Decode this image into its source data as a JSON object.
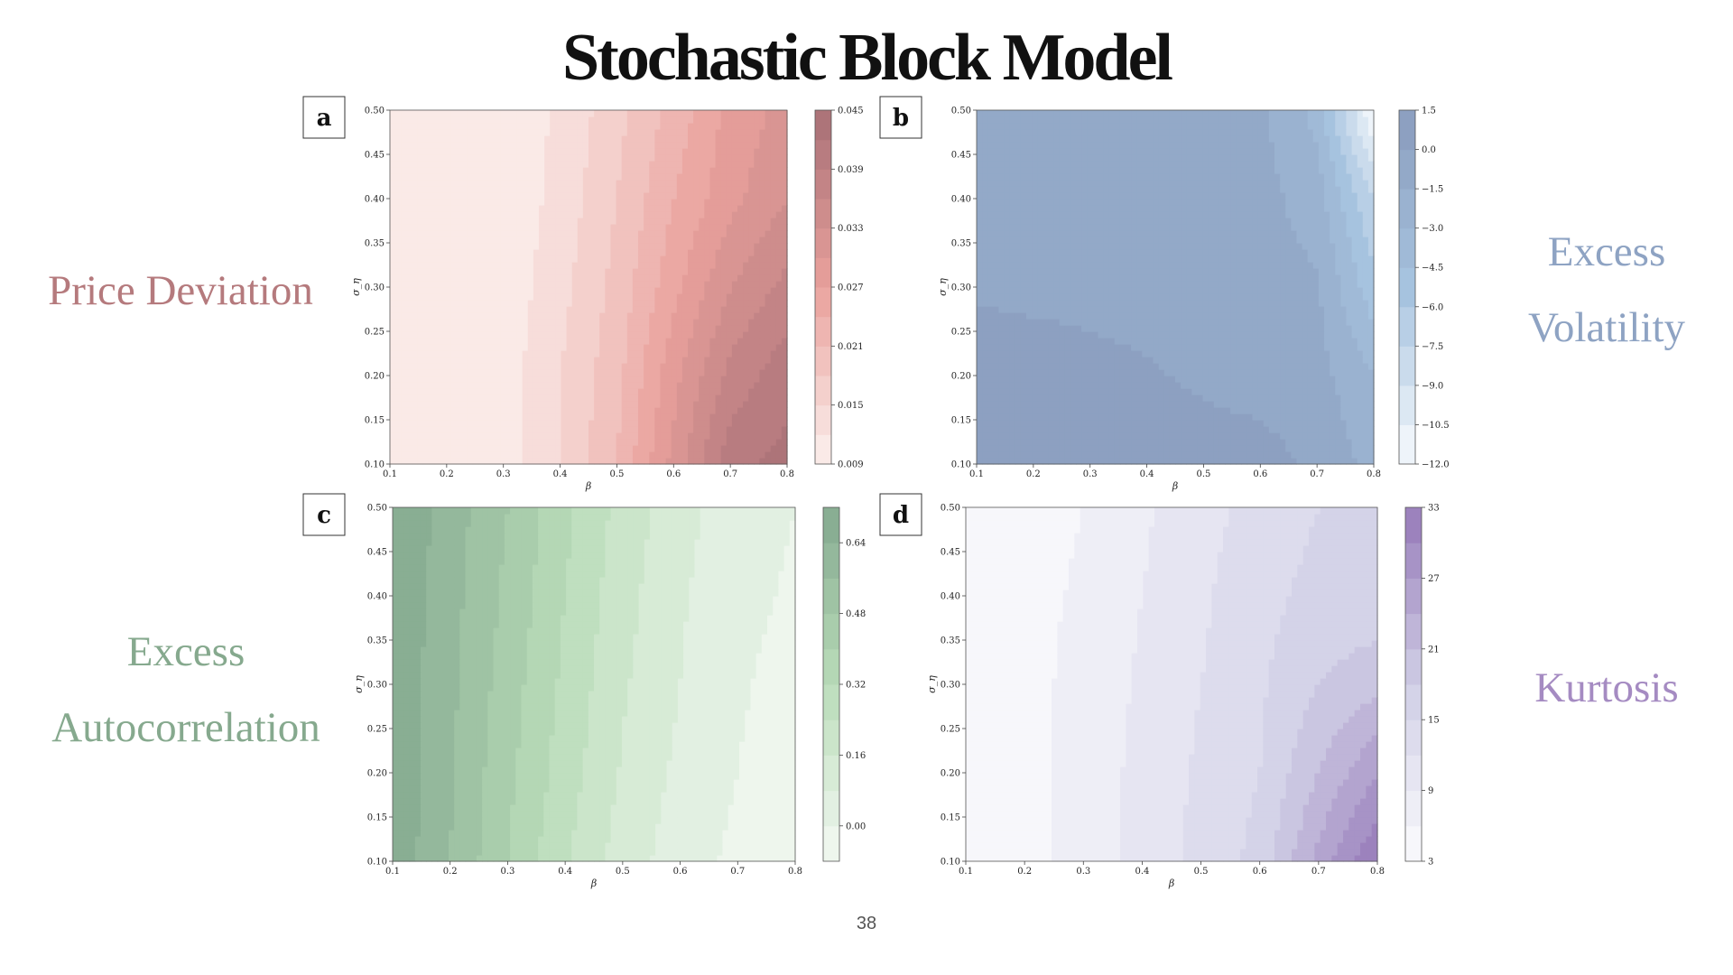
{
  "slide": {
    "title": "Stochastic Block Model",
    "page_number": "38"
  },
  "side_labels": [
    {
      "lines": [
        "Price Deviation"
      ],
      "color": "#b57a7d"
    },
    {
      "lines": [
        "Excess",
        "Volatility"
      ],
      "color": "#8ea3c3"
    },
    {
      "lines": [
        "Excess",
        "Autocorrelation"
      ],
      "color": "#86a98e"
    },
    {
      "lines": [
        "Kurtosis"
      ],
      "color": "#a58bc2"
    }
  ],
  "chart_data": [
    {
      "type": "heatmap",
      "panel": "a",
      "metric": "Price Deviation",
      "xlabel": "β",
      "ylabel": "σ_η",
      "xlim": [
        0.1,
        0.8
      ],
      "ylim": [
        0.1,
        0.5
      ],
      "x_ticks": [
        "0.1",
        "0.2",
        "0.3",
        "0.4",
        "0.5",
        "0.6",
        "0.7",
        "0.8"
      ],
      "y_ticks": [
        "0.10",
        "0.15",
        "0.20",
        "0.25",
        "0.30",
        "0.35",
        "0.40",
        "0.45",
        "0.50"
      ],
      "colorbar": {
        "min": 0.009,
        "max": 0.045,
        "levels": 12,
        "ticks": [
          "0.009",
          "0.015",
          "0.021",
          "0.027",
          "0.033",
          "0.039",
          "0.045"
        ],
        "low_color": "#fbf1ee",
        "mid_color": "#e9a19c",
        "high_color": "#a87076"
      },
      "grid": {
        "x": [
          0.1,
          0.2,
          0.3,
          0.4,
          0.5,
          0.6,
          0.7,
          0.8
        ],
        "y": [
          0.1,
          0.2,
          0.3,
          0.4,
          0.5
        ],
        "values": [
          [
            0.009,
            0.0095,
            0.0105,
            0.015,
            0.021,
            0.031,
            0.041,
            0.043
          ],
          [
            0.009,
            0.0095,
            0.0105,
            0.015,
            0.02,
            0.029,
            0.037,
            0.041
          ],
          [
            0.009,
            0.0093,
            0.01,
            0.014,
            0.019,
            0.026,
            0.033,
            0.037
          ],
          [
            0.009,
            0.0093,
            0.0098,
            0.013,
            0.018,
            0.024,
            0.029,
            0.033
          ],
          [
            0.009,
            0.0093,
            0.0098,
            0.0125,
            0.017,
            0.022,
            0.028,
            0.031
          ]
        ]
      }
    },
    {
      "type": "heatmap",
      "panel": "b",
      "metric": "Excess Volatility",
      "xlabel": "β",
      "ylabel": "σ_η",
      "xlim": [
        0.1,
        0.8
      ],
      "ylim": [
        0.1,
        0.5
      ],
      "x_ticks": [
        "0.1",
        "0.2",
        "0.3",
        "0.4",
        "0.5",
        "0.6",
        "0.7",
        "0.8"
      ],
      "y_ticks": [
        "0.10",
        "0.15",
        "0.20",
        "0.25",
        "0.30",
        "0.35",
        "0.40",
        "0.45",
        "0.50"
      ],
      "colorbar": {
        "min": -12.0,
        "max": 1.5,
        "levels": 9,
        "ticks": [
          "1.5",
          "0.0",
          "−1.5",
          "−3.0",
          "−4.5",
          "−6.0",
          "−7.5",
          "−9.0",
          "−10.5",
          "−12.0"
        ],
        "low_color": "#f7fafd",
        "mid_color": "#a6c3df",
        "high_color": "#8a9cbd"
      },
      "grid": {
        "x": [
          0.1,
          0.2,
          0.3,
          0.4,
          0.5,
          0.6,
          0.7,
          0.8
        ],
        "y": [
          0.1,
          0.2,
          0.3,
          0.4,
          0.5
        ],
        "values": [
          [
            1.3,
            1.2,
            1.0,
            0.9,
            0.8,
            0.6,
            -0.3,
            -2.0
          ],
          [
            1.2,
            1.0,
            0.6,
            0.2,
            -0.3,
            -0.6,
            -0.9,
            -3.0
          ],
          [
            -0.3,
            -0.5,
            -0.6,
            -0.7,
            -0.8,
            -0.9,
            -1.3,
            -5.5
          ],
          [
            -0.6,
            -0.7,
            -0.8,
            -0.8,
            -0.9,
            -1.0,
            -2.2,
            -7.5
          ],
          [
            -0.8,
            -0.8,
            -0.9,
            -0.9,
            -1.0,
            -1.2,
            -3.5,
            -12.0
          ]
        ]
      }
    },
    {
      "type": "heatmap",
      "panel": "c",
      "metric": "Excess Autocorrelation",
      "xlabel": "β",
      "ylabel": "σ_η",
      "xlim": [
        0.1,
        0.8
      ],
      "ylim": [
        0.1,
        0.5
      ],
      "x_ticks": [
        "0.1",
        "0.2",
        "0.3",
        "0.4",
        "0.5",
        "0.6",
        "0.7",
        "0.8"
      ],
      "y_ticks": [
        "0.10",
        "0.15",
        "0.20",
        "0.25",
        "0.30",
        "0.35",
        "0.40",
        "0.45",
        "0.50"
      ],
      "colorbar": {
        "min": -0.08,
        "max": 0.72,
        "levels": 10,
        "ticks": [
          "0.00",
          "0.16",
          "0.32",
          "0.48",
          "0.64"
        ],
        "low_color": "#f4f9f3",
        "mid_color": "#b9dcb9",
        "high_color": "#84a98f"
      },
      "grid": {
        "x": [
          0.1,
          0.2,
          0.3,
          0.4,
          0.5,
          0.6,
          0.7,
          0.8
        ],
        "y": [
          0.1,
          0.2,
          0.3,
          0.4,
          0.5
        ],
        "values": [
          [
            0.7,
            0.56,
            0.4,
            0.25,
            0.12,
            0.04,
            -0.02,
            -0.07
          ],
          [
            0.7,
            0.57,
            0.42,
            0.28,
            0.15,
            0.06,
            0.0,
            -0.05
          ],
          [
            0.7,
            0.58,
            0.44,
            0.3,
            0.17,
            0.08,
            0.01,
            -0.03
          ],
          [
            0.71,
            0.59,
            0.46,
            0.32,
            0.19,
            0.09,
            0.02,
            -0.01
          ],
          [
            0.72,
            0.6,
            0.48,
            0.34,
            0.21,
            0.11,
            0.03,
            0.0
          ]
        ]
      }
    },
    {
      "type": "heatmap",
      "panel": "d",
      "metric": "Kurtosis",
      "xlabel": "β",
      "ylabel": "σ_η",
      "xlim": [
        0.1,
        0.8
      ],
      "ylim": [
        0.1,
        0.5
      ],
      "x_ticks": [
        "0.1",
        "0.2",
        "0.3",
        "0.4",
        "0.5",
        "0.6",
        "0.7",
        "0.8"
      ],
      "y_ticks": [
        "0.10",
        "0.15",
        "0.20",
        "0.25",
        "0.30",
        "0.35",
        "0.40",
        "0.45",
        "0.50"
      ],
      "colorbar": {
        "min": 3,
        "max": 33,
        "levels": 10,
        "ticks": [
          "3",
          "9",
          "15",
          "21",
          "27",
          "33"
        ],
        "low_color": "#fbfbfd",
        "mid_color": "#d0cfe6",
        "high_color": "#9679b8"
      },
      "grid": {
        "x": [
          0.1,
          0.2,
          0.3,
          0.4,
          0.5,
          0.6,
          0.7,
          0.8
        ],
        "y": [
          0.1,
          0.2,
          0.3,
          0.4,
          0.5
        ],
        "values": [
          [
            3.5,
            5,
            7,
            10,
            13,
            16,
            25,
            33
          ],
          [
            3.5,
            5,
            7,
            10,
            12.5,
            15,
            21,
            27
          ],
          [
            3.5,
            5,
            7,
            9.5,
            12,
            14.5,
            18,
            20
          ],
          [
            3.5,
            5,
            6.5,
            9,
            11.5,
            14,
            16,
            16
          ],
          [
            3.5,
            4.5,
            6,
            8.5,
            11,
            13,
            15,
            15
          ]
        ]
      }
    }
  ]
}
